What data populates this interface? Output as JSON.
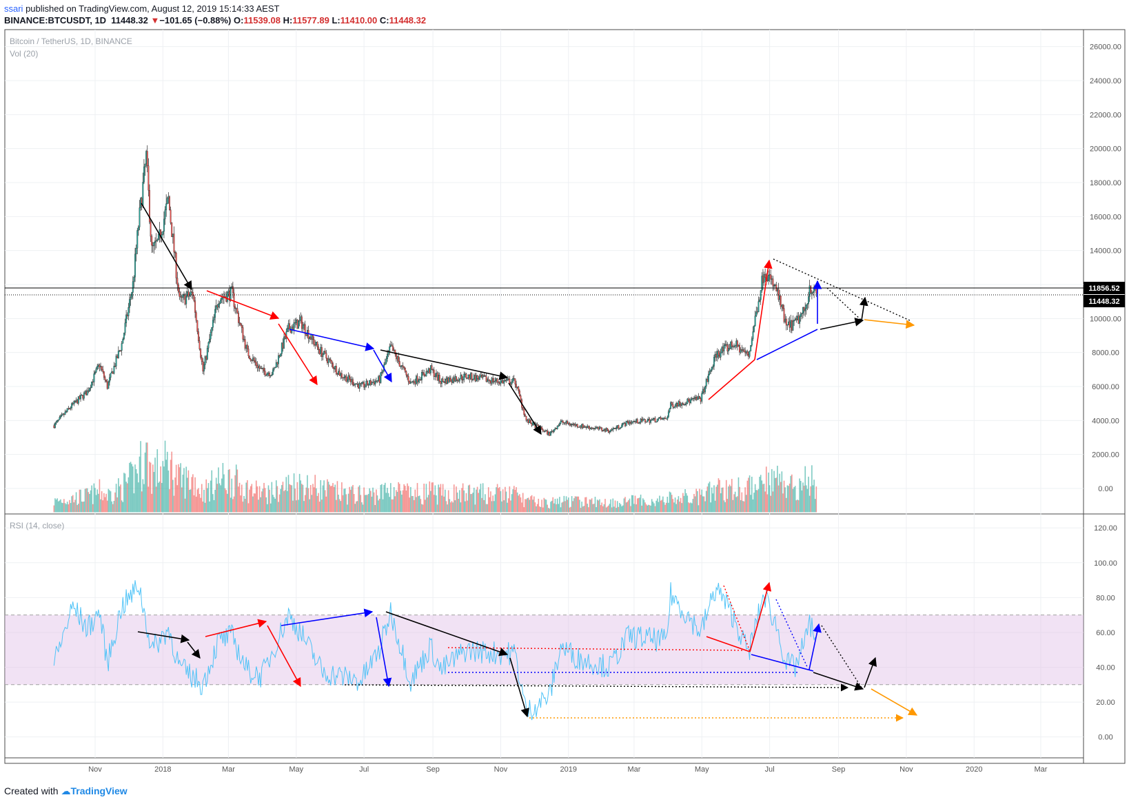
{
  "header": {
    "user": "ssari",
    "published_text": "published on TradingView.com, August 12, 2019 15:14:33 AEST",
    "symbol": "BINANCE:BTCUSDT, 1D",
    "last": "11448.32",
    "change_arrow": "▼",
    "change": "−101.65 (−0.88%)",
    "o_label": "O:",
    "o": "11539.08",
    "h_label": "H:",
    "h": "11577.89",
    "l_label": "L:",
    "l": "11410.00",
    "c_label": "C:",
    "c": "11448.32"
  },
  "footer": {
    "created_with": "Created with",
    "brand": "TradingView"
  },
  "colors": {
    "up": "#26a69a",
    "down": "#ef5350",
    "rsi": "#4fc3f7",
    "rsi_band": "#e1bee7"
  },
  "chart_data": [
    {
      "type": "candlestick",
      "title": "Bitcoin / TetherUS, 1D, BINANCE",
      "volume_label": "Vol (20)",
      "x_ticks": [
        "Nov",
        "2018",
        "Mar",
        "May",
        "Jul",
        "Sep",
        "Nov",
        "2019",
        "Mar",
        "May",
        "Jul",
        "Sep",
        "Nov",
        "2020",
        "Mar"
      ],
      "y_ticks": [
        "26000.00",
        "24000.00",
        "22000.00",
        "20000.00",
        "18000.00",
        "16000.00",
        "14000.00",
        "12000.00",
        "10000.00",
        "8000.00",
        "6000.00",
        "4000.00",
        "2000.00",
        "0.00"
      ],
      "ylim": [
        -1500,
        27000
      ],
      "price_labels": {
        "level": "11856.52",
        "last": "11448.32"
      },
      "price_path": [
        [
          "2017-09-25",
          3700
        ],
        [
          "2017-10-10",
          4800
        ],
        [
          "2017-10-25",
          5700
        ],
        [
          "2017-11-05",
          7300
        ],
        [
          "2017-11-12",
          6000
        ],
        [
          "2017-11-25",
          8500
        ],
        [
          "2017-12-05",
          12000
        ],
        [
          "2017-12-10",
          15500
        ],
        [
          "2017-12-17",
          19500
        ],
        [
          "2017-12-22",
          14000
        ],
        [
          "2017-12-28",
          14500
        ],
        [
          "2018-01-06",
          17000
        ],
        [
          "2018-01-16",
          11000
        ],
        [
          "2018-01-28",
          11500
        ],
        [
          "2018-02-06",
          6900
        ],
        [
          "2018-02-20",
          11200
        ],
        [
          "2018-03-04",
          11500
        ],
        [
          "2018-03-18",
          8000
        ],
        [
          "2018-03-31",
          6900
        ],
        [
          "2018-04-10",
          6800
        ],
        [
          "2018-04-24",
          9400
        ],
        [
          "2018-05-05",
          9800
        ],
        [
          "2018-05-20",
          8300
        ],
        [
          "2018-06-10",
          6700
        ],
        [
          "2018-06-28",
          6000
        ],
        [
          "2018-07-15",
          6400
        ],
        [
          "2018-07-25",
          8300
        ],
        [
          "2018-08-12",
          6200
        ],
        [
          "2018-08-30",
          7000
        ],
        [
          "2018-09-08",
          6300
        ],
        [
          "2018-10-01",
          6600
        ],
        [
          "2018-10-30",
          6300
        ],
        [
          "2018-11-14",
          6300
        ],
        [
          "2018-11-24",
          4000
        ],
        [
          "2018-12-15",
          3200
        ],
        [
          "2018-12-25",
          3900
        ],
        [
          "2019-01-10",
          3700
        ],
        [
          "2019-02-07",
          3400
        ],
        [
          "2019-02-24",
          3900
        ],
        [
          "2019-03-30",
          4100
        ],
        [
          "2019-04-03",
          4900
        ],
        [
          "2019-04-30",
          5300
        ],
        [
          "2019-05-14",
          7900
        ],
        [
          "2019-05-30",
          8500
        ],
        [
          "2019-06-12",
          7800
        ],
        [
          "2019-06-26",
          12900
        ],
        [
          "2019-07-08",
          11500
        ],
        [
          "2019-07-16",
          9500
        ],
        [
          "2019-07-24",
          9700
        ],
        [
          "2019-08-02",
          10500
        ],
        [
          "2019-08-06",
          11900
        ],
        [
          "2019-08-12",
          11448
        ]
      ]
    },
    {
      "type": "line",
      "title": "RSI (14, close)",
      "y_ticks": [
        "120.00",
        "100.00",
        "80.00",
        "60.00",
        "40.00",
        "20.00",
        "0.00"
      ],
      "ylim": [
        -12,
        128
      ],
      "band": [
        30,
        70
      ],
      "rsi_path": [
        [
          "2017-09-25",
          42
        ],
        [
          "2017-10-12",
          75
        ],
        [
          "2017-10-25",
          62
        ],
        [
          "2017-11-05",
          72
        ],
        [
          "2017-11-12",
          42
        ],
        [
          "2017-11-25",
          75
        ],
        [
          "2017-12-05",
          82
        ],
        [
          "2017-12-10",
          88
        ],
        [
          "2017-12-22",
          50
        ],
        [
          "2018-01-06",
          62
        ],
        [
          "2018-01-16",
          40
        ],
        [
          "2018-02-06",
          30
        ],
        [
          "2018-02-20",
          55
        ],
        [
          "2018-03-04",
          58
        ],
        [
          "2018-03-18",
          38
        ],
        [
          "2018-03-31",
          35
        ],
        [
          "2018-04-24",
          70
        ],
        [
          "2018-05-05",
          60
        ],
        [
          "2018-05-25",
          37
        ],
        [
          "2018-06-10",
          35
        ],
        [
          "2018-06-28",
          32
        ],
        [
          "2018-07-15",
          50
        ],
        [
          "2018-07-25",
          72
        ],
        [
          "2018-08-12",
          32
        ],
        [
          "2018-08-30",
          52
        ],
        [
          "2018-09-08",
          38
        ],
        [
          "2018-10-01",
          50
        ],
        [
          "2018-10-30",
          48
        ],
        [
          "2018-11-14",
          48
        ],
        [
          "2018-11-24",
          14
        ],
        [
          "2018-12-15",
          24
        ],
        [
          "2018-12-25",
          52
        ],
        [
          "2019-01-10",
          45
        ],
        [
          "2019-02-07",
          40
        ],
        [
          "2019-02-24",
          58
        ],
        [
          "2019-03-30",
          55
        ],
        [
          "2019-04-03",
          82
        ],
        [
          "2019-04-30",
          60
        ],
        [
          "2019-05-14",
          86
        ],
        [
          "2019-05-30",
          68
        ],
        [
          "2019-06-12",
          48
        ],
        [
          "2019-06-26",
          82
        ],
        [
          "2019-07-08",
          62
        ],
        [
          "2019-07-16",
          42
        ],
        [
          "2019-07-24",
          40
        ],
        [
          "2019-08-02",
          55
        ],
        [
          "2019-08-06",
          65
        ],
        [
          "2019-08-12",
          57
        ]
      ]
    }
  ]
}
